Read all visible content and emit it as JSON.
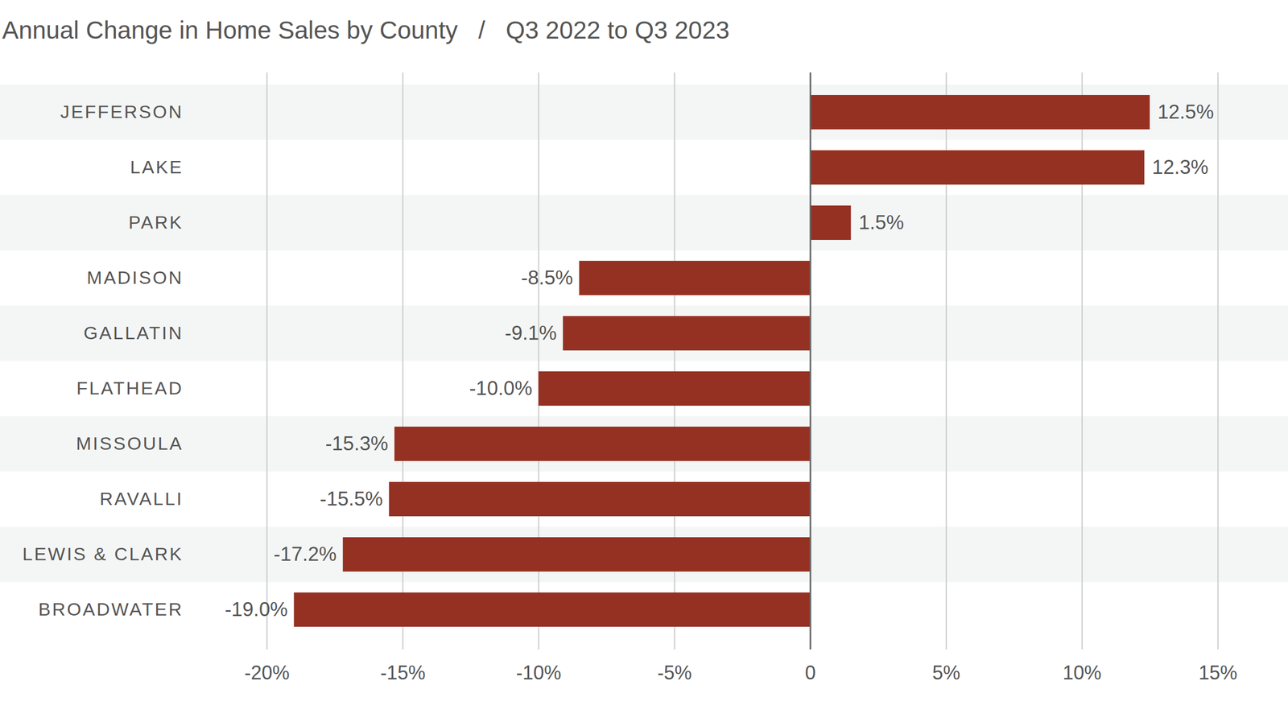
{
  "chart_data": {
    "type": "bar",
    "title": "Annual Change in Home Sales by County   /   Q3 2022 to Q3 2023",
    "orientation": "horizontal",
    "categories": [
      "JEFFERSON",
      "LAKE",
      "PARK",
      "MADISON",
      "GALLATIN",
      "FLATHEAD",
      "MISSOULA",
      "RAVALLI",
      "LEWIS & CLARK",
      "BROADWATER"
    ],
    "values": [
      12.5,
      12.3,
      1.5,
      -8.5,
      -9.1,
      -10.0,
      -15.3,
      -15.5,
      -17.2,
      -19.0
    ],
    "value_labels": [
      "12.5%",
      "12.3%",
      "1.5%",
      "-8.5%",
      "-9.1%",
      "-10.0%",
      "-15.3%",
      "-15.5%",
      "-17.2%",
      "-19.0%"
    ],
    "data_labels": true,
    "color": "#943122",
    "xlim": [
      -20,
      15
    ],
    "xticks": [
      {
        "value": -20,
        "label": "-20%"
      },
      {
        "value": -15,
        "label": "-15%"
      },
      {
        "value": -10,
        "label": "-10%"
      },
      {
        "value": -5,
        "label": "-5%"
      },
      0,
      {
        "value": 5,
        "label": "5%"
      },
      {
        "value": 10,
        "label": "10%"
      },
      {
        "value": 15,
        "label": "15%"
      }
    ],
    "grid": true
  }
}
